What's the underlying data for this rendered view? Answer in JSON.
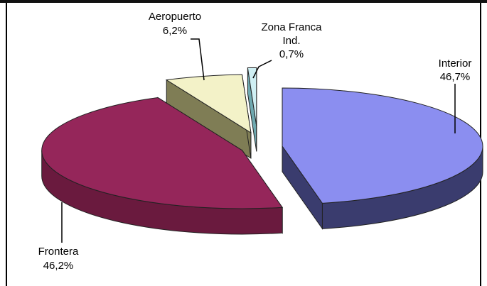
{
  "chart_data": {
    "type": "pie",
    "variant": "3d-exploded",
    "title": "",
    "slices": [
      {
        "label": "Interior",
        "value": 46.7,
        "value_label": "46,7%",
        "color": "#8b8ef0",
        "side_color": "#3a3c6e"
      },
      {
        "label": "Frontera",
        "value": 46.2,
        "value_label": "46,2%",
        "color": "#95265a",
        "side_color": "#6a1a3e"
      },
      {
        "label": "Aeropuerto",
        "value": 6.2,
        "value_label": "6,2%",
        "color": "#f3f2c8",
        "side_color": "#7f7d55"
      },
      {
        "label": "Zona Franca Ind.",
        "label_lines": [
          "Zona Franca",
          "Ind."
        ],
        "value": 0.7,
        "value_label": "0,7%",
        "color": "#cfeff3",
        "side_color": "#6fa9b0"
      }
    ],
    "legend": "none",
    "label_style": "callout"
  }
}
